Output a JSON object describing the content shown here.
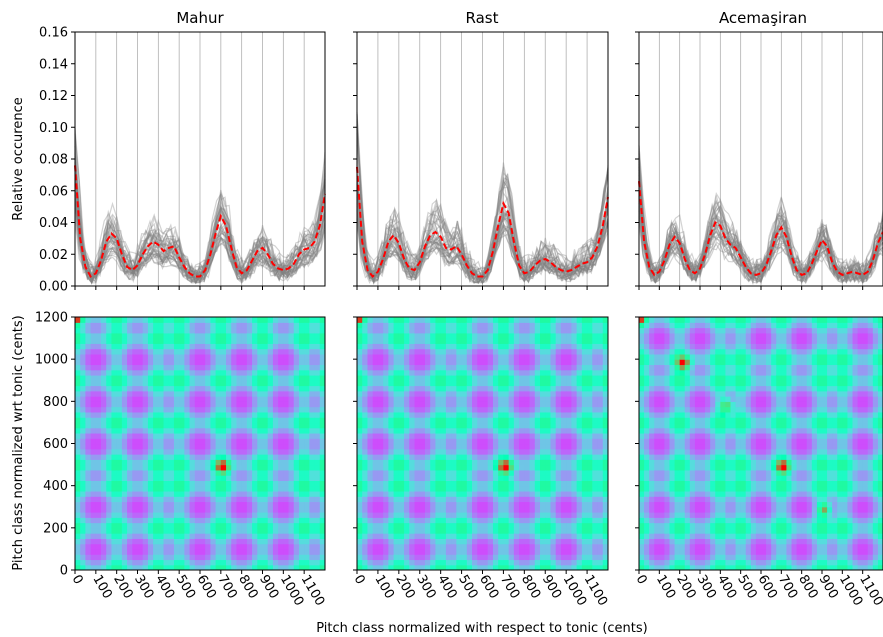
{
  "figure": {
    "xlabel": "Pitch class normalized with respect to tonic (cents)",
    "top_ylabel": "Relative occurence",
    "bottom_ylabel": "Pitch class normalized wrt tonic (cents)",
    "titles": [
      "Mahur",
      "Rast",
      "Acemaşiran"
    ]
  },
  "chart_data": [
    {
      "type": "line",
      "title": "Mahur",
      "xlabel": "",
      "ylabel": "Relative occurence",
      "xlim": [
        0,
        1200
      ],
      "ylim": [
        0,
        0.16
      ],
      "x_ticks": [
        0,
        100,
        200,
        300,
        400,
        500,
        600,
        700,
        800,
        900,
        1000,
        1100
      ],
      "y_ticks": [
        0.0,
        0.02,
        0.04,
        0.06,
        0.08,
        0.1,
        0.12,
        0.14,
        0.16
      ],
      "y_tick_labels": [
        "0.00",
        "0.02",
        "0.04",
        "0.06",
        "0.08",
        "0.10",
        "0.12",
        "0.14",
        "0.16"
      ],
      "grid": "vertical",
      "mean_curve": {
        "color": "#ff0000",
        "style": "dashed",
        "x": [
          0,
          25,
          50,
          75,
          100,
          125,
          150,
          175,
          200,
          225,
          250,
          275,
          300,
          325,
          350,
          375,
          400,
          425,
          450,
          475,
          500,
          525,
          550,
          575,
          600,
          625,
          650,
          675,
          700,
          725,
          750,
          775,
          800,
          825,
          850,
          875,
          900,
          925,
          950,
          975,
          1000,
          1025,
          1050,
          1075,
          1100,
          1125,
          1150,
          1175,
          1200
        ],
        "y": [
          0.076,
          0.03,
          0.012,
          0.006,
          0.008,
          0.016,
          0.028,
          0.033,
          0.03,
          0.02,
          0.012,
          0.01,
          0.013,
          0.02,
          0.025,
          0.028,
          0.026,
          0.022,
          0.024,
          0.025,
          0.018,
          0.012,
          0.008,
          0.006,
          0.006,
          0.01,
          0.02,
          0.033,
          0.044,
          0.038,
          0.024,
          0.012,
          0.008,
          0.01,
          0.016,
          0.022,
          0.024,
          0.02,
          0.014,
          0.011,
          0.01,
          0.011,
          0.014,
          0.02,
          0.023,
          0.024,
          0.028,
          0.038,
          0.058
        ]
      },
      "individual_curves": {
        "count": 40,
        "color": "#808080",
        "description_visible": false
      }
    },
    {
      "type": "line",
      "title": "Rast",
      "xlim": [
        0,
        1200
      ],
      "ylim": [
        0,
        0.16
      ],
      "x_ticks": [
        0,
        100,
        200,
        300,
        400,
        500,
        600,
        700,
        800,
        900,
        1000,
        1100
      ],
      "grid": "vertical",
      "mean_curve": {
        "color": "#ff0000",
        "style": "dashed",
        "x": [
          0,
          25,
          50,
          75,
          100,
          125,
          150,
          175,
          200,
          225,
          250,
          275,
          300,
          325,
          350,
          375,
          400,
          425,
          450,
          475,
          500,
          525,
          550,
          575,
          600,
          625,
          650,
          675,
          700,
          725,
          750,
          775,
          800,
          825,
          850,
          875,
          900,
          925,
          950,
          975,
          1000,
          1025,
          1050,
          1075,
          1100,
          1125,
          1150,
          1175,
          1200
        ],
        "y": [
          0.075,
          0.028,
          0.01,
          0.006,
          0.009,
          0.017,
          0.028,
          0.032,
          0.027,
          0.017,
          0.011,
          0.01,
          0.015,
          0.025,
          0.032,
          0.034,
          0.031,
          0.024,
          0.023,
          0.025,
          0.02,
          0.013,
          0.008,
          0.006,
          0.006,
          0.01,
          0.022,
          0.038,
          0.052,
          0.046,
          0.028,
          0.013,
          0.008,
          0.009,
          0.013,
          0.016,
          0.017,
          0.015,
          0.012,
          0.01,
          0.009,
          0.01,
          0.012,
          0.014,
          0.015,
          0.018,
          0.025,
          0.038,
          0.056
        ]
      },
      "individual_curves": {
        "count": 40,
        "color": "#808080"
      }
    },
    {
      "type": "line",
      "title": "Acemaşiran",
      "xlim": [
        0,
        1200
      ],
      "ylim": [
        0,
        0.16
      ],
      "x_ticks": [
        0,
        100,
        200,
        300,
        400,
        500,
        600,
        700,
        800,
        900,
        1000,
        1100
      ],
      "grid": "vertical",
      "mean_curve": {
        "color": "#ff0000",
        "style": "dashed",
        "x": [
          0,
          25,
          50,
          75,
          100,
          125,
          150,
          175,
          200,
          225,
          250,
          275,
          300,
          325,
          350,
          375,
          400,
          425,
          450,
          475,
          500,
          525,
          550,
          575,
          600,
          625,
          650,
          675,
          700,
          725,
          750,
          775,
          800,
          825,
          850,
          875,
          900,
          925,
          950,
          975,
          1000,
          1025,
          1050,
          1075,
          1100,
          1125,
          1150,
          1175,
          1200
        ],
        "y": [
          0.066,
          0.028,
          0.012,
          0.007,
          0.009,
          0.016,
          0.026,
          0.031,
          0.027,
          0.017,
          0.01,
          0.008,
          0.011,
          0.02,
          0.032,
          0.04,
          0.038,
          0.03,
          0.026,
          0.024,
          0.018,
          0.012,
          0.008,
          0.007,
          0.008,
          0.013,
          0.022,
          0.032,
          0.037,
          0.031,
          0.019,
          0.01,
          0.007,
          0.008,
          0.014,
          0.022,
          0.029,
          0.025,
          0.015,
          0.009,
          0.007,
          0.008,
          0.009,
          0.008,
          0.007,
          0.009,
          0.016,
          0.027,
          0.034
        ]
      },
      "individual_curves": {
        "count": 40,
        "color": "#808080"
      }
    },
    {
      "type": "heatmap",
      "title": "Mahur",
      "ylabel": "Pitch class normalized wrt tonic (cents)",
      "xlim": [
        0,
        1200
      ],
      "ylim": [
        0,
        1200
      ],
      "colormap": "rainbow",
      "x_ticks": [
        0,
        100,
        200,
        300,
        400,
        500,
        600,
        700,
        800,
        900,
        1000,
        1100
      ],
      "y_ticks": [
        0,
        200,
        400,
        600,
        800,
        1000,
        1200
      ],
      "hotspots": [
        [
          0,
          1200
        ],
        [
          710,
          490
        ]
      ]
    },
    {
      "type": "heatmap",
      "title": "Rast",
      "xlim": [
        0,
        1200
      ],
      "ylim": [
        0,
        1200
      ],
      "colormap": "rainbow",
      "x_ticks": [
        0,
        100,
        200,
        300,
        400,
        500,
        600,
        700,
        800,
        900,
        1000,
        1100
      ],
      "hotspots": [
        [
          0,
          1200
        ],
        [
          710,
          490
        ]
      ]
    },
    {
      "type": "heatmap",
      "title": "Acemaşiran",
      "xlim": [
        0,
        1200
      ],
      "ylim": [
        0,
        1200
      ],
      "colormap": "rainbow",
      "x_ticks": [
        0,
        100,
        200,
        300,
        400,
        500,
        600,
        700,
        800,
        900,
        1000,
        1100
      ],
      "hotspots": [
        [
          0,
          1200
        ],
        [
          430,
          780
        ],
        [
          710,
          490
        ],
        [
          910,
          290
        ],
        [
          220,
          980
        ]
      ]
    }
  ]
}
